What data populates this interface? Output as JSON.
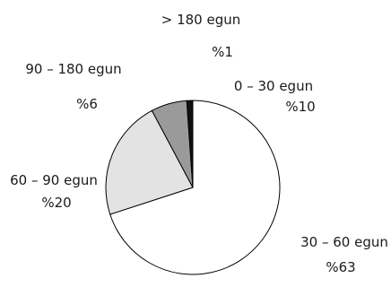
{
  "chart_data": {
    "type": "pie",
    "slices": [
      {
        "label": "0 – 30 egun",
        "value": 63,
        "value_label": "%63",
        "color": "#ffffff"
      },
      {
        "label": "60 – 90 egun",
        "value": 20,
        "value_label": "%20",
        "color": "#e3e3e3"
      },
      {
        "label": "90 – 180 egun",
        "value": 6,
        "value_label": "%6",
        "color": "#9a9a9a"
      },
      {
        "label": "> 180 egun",
        "value": 1,
        "value_label": "%1",
        "color": "#111111"
      },
      {
        "label": "30 – 60 egun",
        "value": 10,
        "value_label": "%10",
        "color": "#ffffff"
      }
    ],
    "start": "12 o'clock",
    "direction": "clockwise",
    "stroke_color": "#000000"
  }
}
